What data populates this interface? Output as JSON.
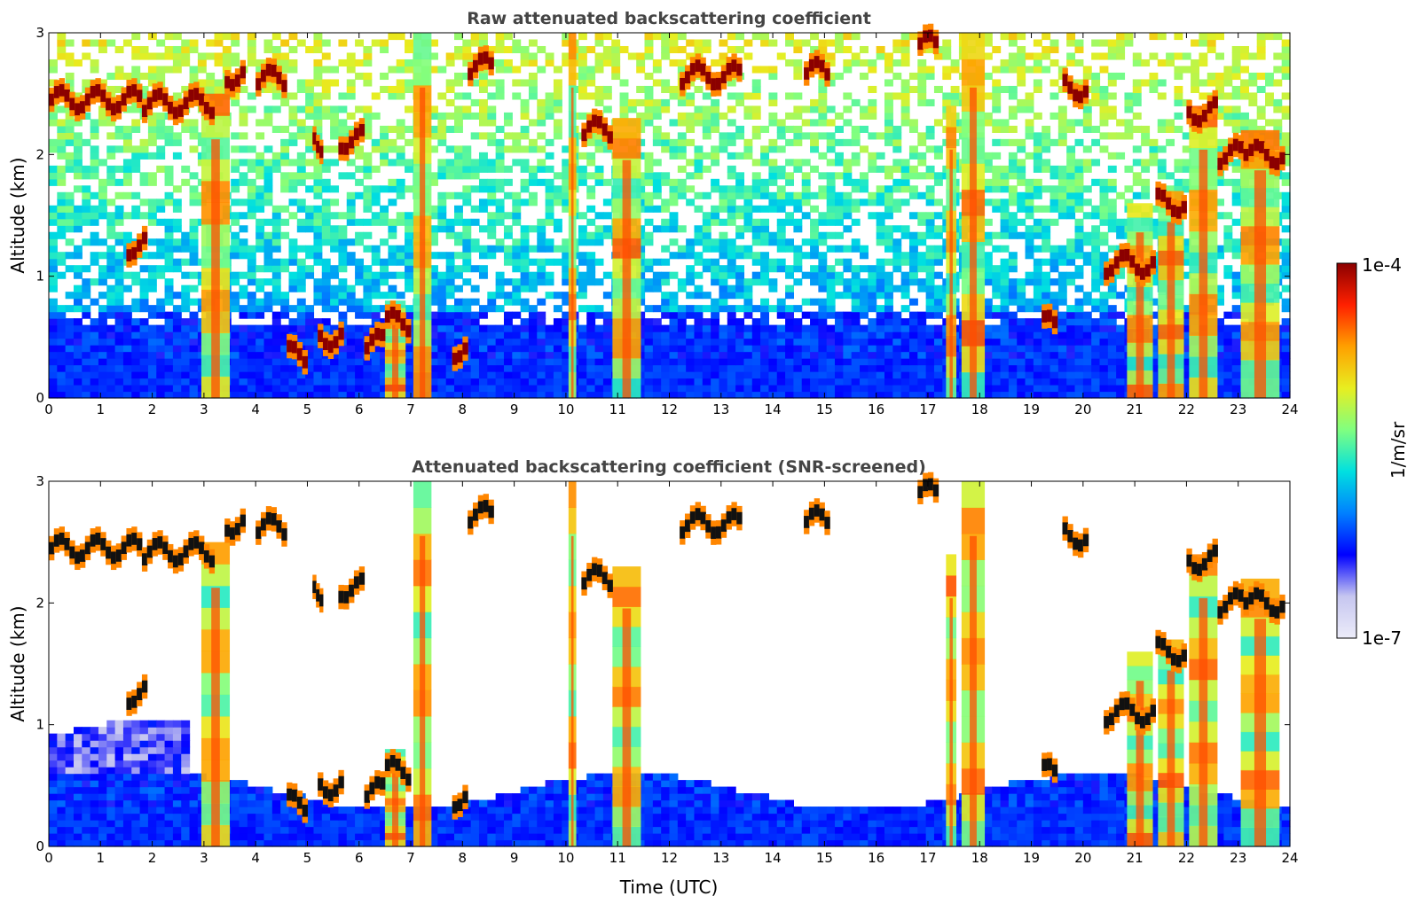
{
  "chart_data": [
    {
      "type": "heatmap",
      "title": "Raw attenuated backscattering coefficient",
      "xlabel": "",
      "ylabel": "Altitude (km)",
      "xlim": [
        0,
        24
      ],
      "ylim": [
        0,
        3
      ],
      "xticks": [
        "0",
        "1",
        "2",
        "3",
        "4",
        "5",
        "6",
        "7",
        "8",
        "9",
        "10",
        "11",
        "12",
        "13",
        "14",
        "15",
        "16",
        "17",
        "18",
        "19",
        "20",
        "21",
        "22",
        "23",
        "24"
      ],
      "yticks": [
        "0",
        "1",
        "2",
        "3"
      ],
      "screened": false,
      "cloud_layers": [
        {
          "t0": 0.0,
          "t1": 1.8,
          "alt": 2.45
        },
        {
          "t0": 1.8,
          "t1": 3.2,
          "alt": 2.42
        },
        {
          "t0": 3.4,
          "t1": 3.8,
          "alt": 2.65
        },
        {
          "t0": 4.0,
          "t1": 4.6,
          "alt": 2.62
        },
        {
          "t0": 5.1,
          "t1": 5.3,
          "alt": 2.1
        },
        {
          "t0": 5.6,
          "t1": 6.1,
          "alt": 2.12
        },
        {
          "t0": 8.1,
          "t1": 8.6,
          "alt": 2.72
        },
        {
          "t0": 10.3,
          "t1": 10.9,
          "alt": 2.2
        },
        {
          "t0": 12.2,
          "t1": 13.4,
          "alt": 2.65
        },
        {
          "t0": 14.6,
          "t1": 15.1,
          "alt": 2.68
        },
        {
          "t0": 16.8,
          "t1": 17.2,
          "alt": 2.9
        },
        {
          "t0": 19.6,
          "t1": 20.1,
          "alt": 2.55
        },
        {
          "t0": 20.4,
          "t1": 21.4,
          "alt": 1.1
        },
        {
          "t0": 21.4,
          "t1": 22.0,
          "alt": 1.6
        },
        {
          "t0": 22.0,
          "t1": 22.6,
          "alt": 2.35
        },
        {
          "t0": 22.6,
          "t1": 23.2,
          "alt": 2.0
        },
        {
          "t0": 23.2,
          "t1": 23.9,
          "alt": 2.0
        }
      ],
      "low_clouds": [
        {
          "t0": 4.6,
          "t1": 5.0,
          "alt": 0.35
        },
        {
          "t0": 5.2,
          "t1": 5.7,
          "alt": 0.5
        },
        {
          "t0": 6.1,
          "t1": 6.5,
          "alt": 0.45
        },
        {
          "t0": 6.5,
          "t1": 7.0,
          "alt": 0.62
        },
        {
          "t0": 7.8,
          "t1": 8.1,
          "alt": 0.4
        },
        {
          "t0": 1.5,
          "t1": 1.9,
          "alt": 1.25
        },
        {
          "t0": 19.2,
          "t1": 19.5,
          "alt": 0.6
        }
      ],
      "plumes": [
        {
          "t0": 2.95,
          "t1": 3.5,
          "top": 2.5
        },
        {
          "t0": 6.5,
          "t1": 6.9,
          "top": 0.8
        },
        {
          "t0": 7.05,
          "t1": 7.4,
          "top": 3.0
        },
        {
          "t0": 10.05,
          "t1": 10.2,
          "top": 3.0
        },
        {
          "t0": 10.9,
          "t1": 11.45,
          "top": 2.3
        },
        {
          "t0": 17.35,
          "t1": 17.55,
          "top": 2.4
        },
        {
          "t0": 17.65,
          "t1": 18.1,
          "top": 3.0
        },
        {
          "t0": 20.85,
          "t1": 21.35,
          "top": 1.6
        },
        {
          "t0": 21.45,
          "t1": 21.95,
          "top": 1.7
        },
        {
          "t0": 22.05,
          "t1": 22.6,
          "top": 2.4
        },
        {
          "t0": 23.05,
          "t1": 23.8,
          "top": 2.2
        }
      ]
    },
    {
      "type": "heatmap",
      "title": "Attenuated backscattering coefficient (SNR-screened)",
      "xlabel": "Time (UTC)",
      "ylabel": "Altitude (km)",
      "xlim": [
        0,
        24
      ],
      "ylim": [
        0,
        3
      ],
      "xticks": [
        "0",
        "1",
        "2",
        "3",
        "4",
        "5",
        "6",
        "7",
        "8",
        "9",
        "10",
        "11",
        "12",
        "13",
        "14",
        "15",
        "16",
        "17",
        "18",
        "19",
        "20",
        "21",
        "22",
        "23",
        "24"
      ],
      "yticks": [
        "0",
        "1",
        "2",
        "3"
      ],
      "screened": true,
      "cloud_layers": [
        {
          "t0": 0.0,
          "t1": 1.8,
          "alt": 2.45
        },
        {
          "t0": 1.8,
          "t1": 3.2,
          "alt": 2.42
        },
        {
          "t0": 3.4,
          "t1": 3.8,
          "alt": 2.65
        },
        {
          "t0": 4.0,
          "t1": 4.6,
          "alt": 2.62
        },
        {
          "t0": 5.1,
          "t1": 5.3,
          "alt": 2.1
        },
        {
          "t0": 5.6,
          "t1": 6.1,
          "alt": 2.12
        },
        {
          "t0": 8.1,
          "t1": 8.6,
          "alt": 2.72
        },
        {
          "t0": 10.3,
          "t1": 10.9,
          "alt": 2.2
        },
        {
          "t0": 12.2,
          "t1": 13.4,
          "alt": 2.65
        },
        {
          "t0": 14.6,
          "t1": 15.1,
          "alt": 2.68
        },
        {
          "t0": 16.8,
          "t1": 17.2,
          "alt": 2.9
        },
        {
          "t0": 19.6,
          "t1": 20.1,
          "alt": 2.55
        },
        {
          "t0": 20.4,
          "t1": 21.4,
          "alt": 1.1
        },
        {
          "t0": 21.4,
          "t1": 22.0,
          "alt": 1.6
        },
        {
          "t0": 22.0,
          "t1": 22.6,
          "alt": 2.35
        },
        {
          "t0": 22.6,
          "t1": 23.2,
          "alt": 2.0
        },
        {
          "t0": 23.2,
          "t1": 23.9,
          "alt": 2.0
        }
      ],
      "low_clouds": [
        {
          "t0": 4.6,
          "t1": 5.0,
          "alt": 0.35
        },
        {
          "t0": 5.2,
          "t1": 5.7,
          "alt": 0.5
        },
        {
          "t0": 6.1,
          "t1": 6.5,
          "alt": 0.45
        },
        {
          "t0": 6.5,
          "t1": 7.0,
          "alt": 0.62
        },
        {
          "t0": 7.8,
          "t1": 8.1,
          "alt": 0.4
        },
        {
          "t0": 1.5,
          "t1": 1.9,
          "alt": 1.25
        },
        {
          "t0": 19.2,
          "t1": 19.5,
          "alt": 0.6
        }
      ],
      "plumes": [
        {
          "t0": 2.95,
          "t1": 3.5,
          "top": 2.5
        },
        {
          "t0": 6.5,
          "t1": 6.9,
          "top": 0.8
        },
        {
          "t0": 7.05,
          "t1": 7.4,
          "top": 3.0
        },
        {
          "t0": 10.05,
          "t1": 10.2,
          "top": 3.0
        },
        {
          "t0": 10.9,
          "t1": 11.45,
          "top": 2.3
        },
        {
          "t0": 17.35,
          "t1": 17.55,
          "top": 2.4
        },
        {
          "t0": 17.65,
          "t1": 18.1,
          "top": 3.0
        },
        {
          "t0": 20.85,
          "t1": 21.35,
          "top": 1.6
        },
        {
          "t0": 21.45,
          "t1": 21.95,
          "top": 1.7
        },
        {
          "t0": 22.05,
          "t1": 22.6,
          "top": 2.4
        },
        {
          "t0": 23.05,
          "t1": 23.8,
          "top": 2.2
        }
      ]
    }
  ],
  "colorbar": {
    "label": "1/m/sr",
    "max_label": "1e-4",
    "min_label": "1e-7",
    "colormap": "jet",
    "colors": [
      "#ececf9",
      "#c6c6f0",
      "#0000ff",
      "#0080ff",
      "#00e0e0",
      "#80ff80",
      "#e8ee20",
      "#ffa000",
      "#ff2000",
      "#8b0000"
    ]
  }
}
